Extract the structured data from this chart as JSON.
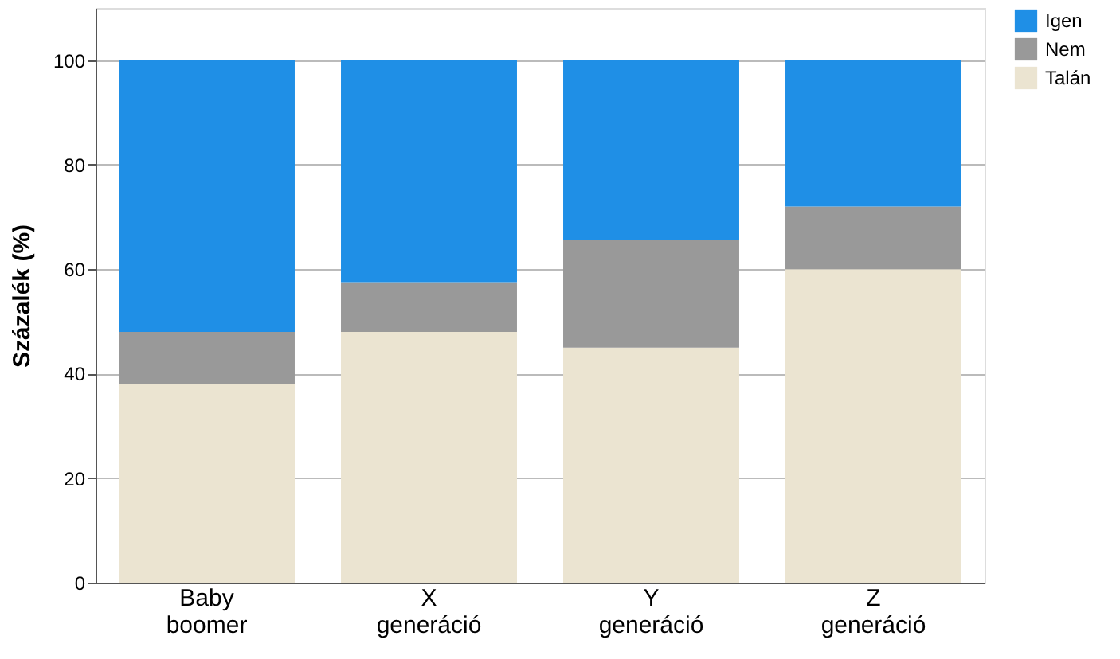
{
  "chart_data": {
    "type": "bar",
    "stacked": true,
    "ylabel": "Százalék (%)",
    "categories": [
      "Baby boomer",
      "X generáció",
      "Y generáció",
      "Z generáció"
    ],
    "series": [
      {
        "name": "Talán",
        "color": "#ebe4d1",
        "values": [
          38,
          48,
          45,
          60
        ]
      },
      {
        "name": "Nem",
        "color": "#999999",
        "values": [
          10,
          9.5,
          20.5,
          12
        ]
      },
      {
        "name": "Igen",
        "color": "#1f8fe6",
        "values": [
          52,
          42.5,
          34.5,
          28
        ]
      }
    ],
    "ylim": [
      0,
      110
    ],
    "yticks": [
      0,
      20,
      40,
      60,
      80,
      100
    ],
    "grid": "y",
    "legend": "top right"
  }
}
